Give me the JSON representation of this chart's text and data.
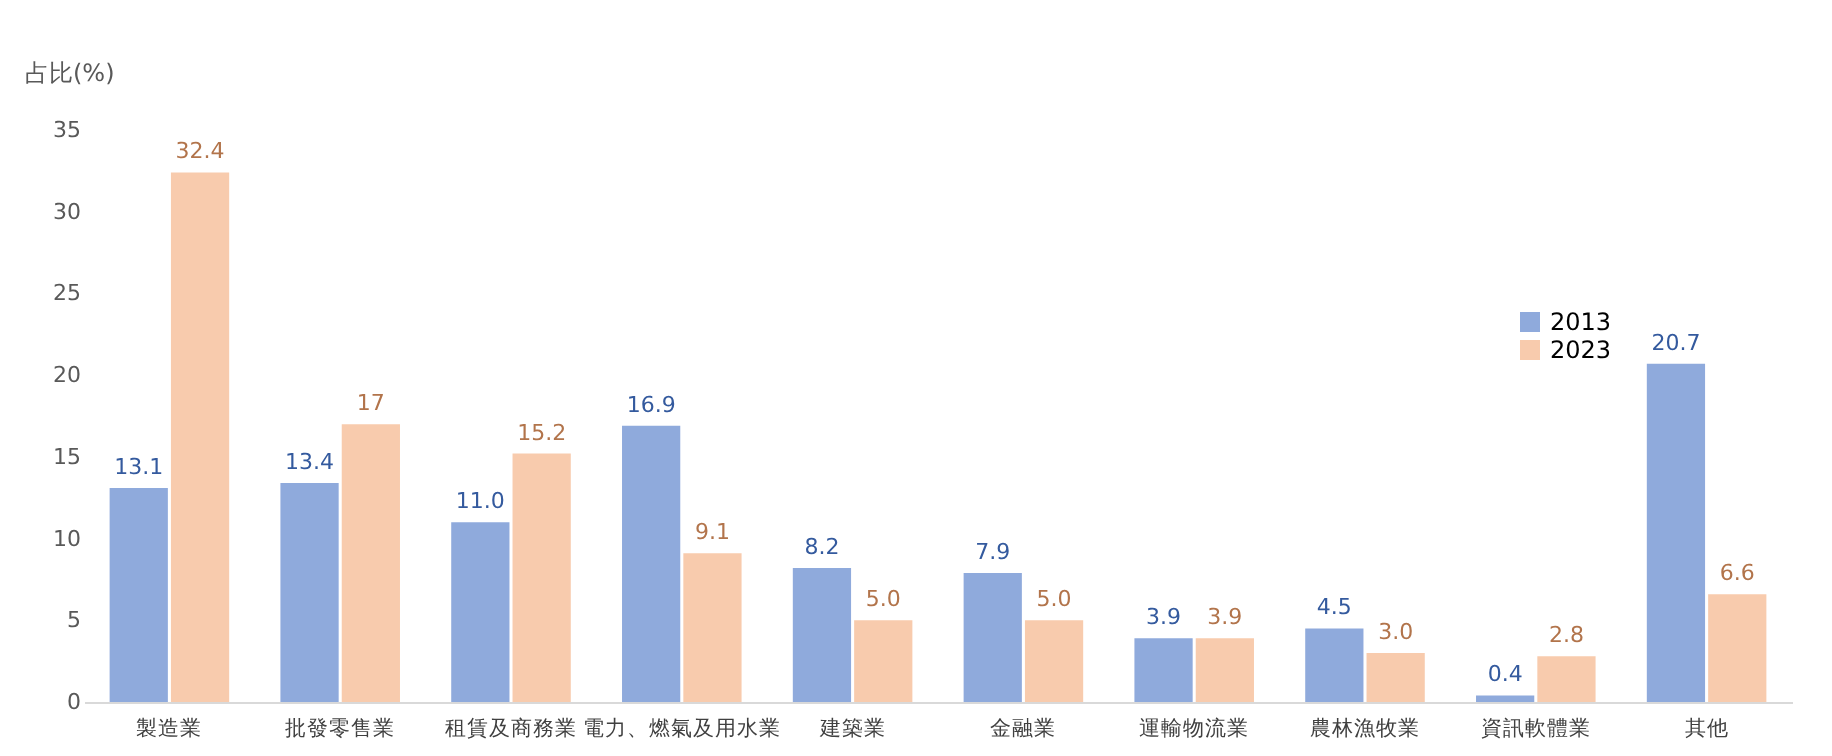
{
  "chart_data": {
    "type": "bar",
    "ylabel": "占比(%)",
    "categories": [
      "製造業",
      "批發零售業",
      "租賃及商務業",
      "電力、燃氣及用水業",
      "建築業",
      "金融業",
      "運輸物流業",
      "農林漁牧業",
      "資訊軟體業",
      "其他"
    ],
    "series": [
      {
        "name": "2013",
        "color": "#8faadc",
        "values": [
          13.1,
          13.4,
          11.0,
          16.9,
          8.2,
          7.9,
          3.9,
          4.5,
          0.4,
          20.7
        ],
        "value_labels": [
          "13.1",
          "13.4",
          "11.0",
          "16.9",
          "8.2",
          "7.9",
          "3.9",
          "4.5",
          "0.4",
          "20.7"
        ]
      },
      {
        "name": "2023",
        "color": "#f8cbad",
        "values": [
          32.4,
          17,
          15.2,
          9.1,
          5.0,
          5.0,
          3.9,
          3.0,
          2.8,
          6.6
        ],
        "value_labels": [
          "32.4",
          "17",
          "15.2",
          "9.1",
          "5.0",
          "5.0",
          "3.9",
          "3.0",
          "2.8",
          "6.6"
        ]
      }
    ],
    "ylim": [
      0,
      35
    ],
    "yticks": [
      0,
      5,
      10,
      15,
      20,
      25,
      30,
      35
    ],
    "grid": false,
    "legend": "top right"
  }
}
